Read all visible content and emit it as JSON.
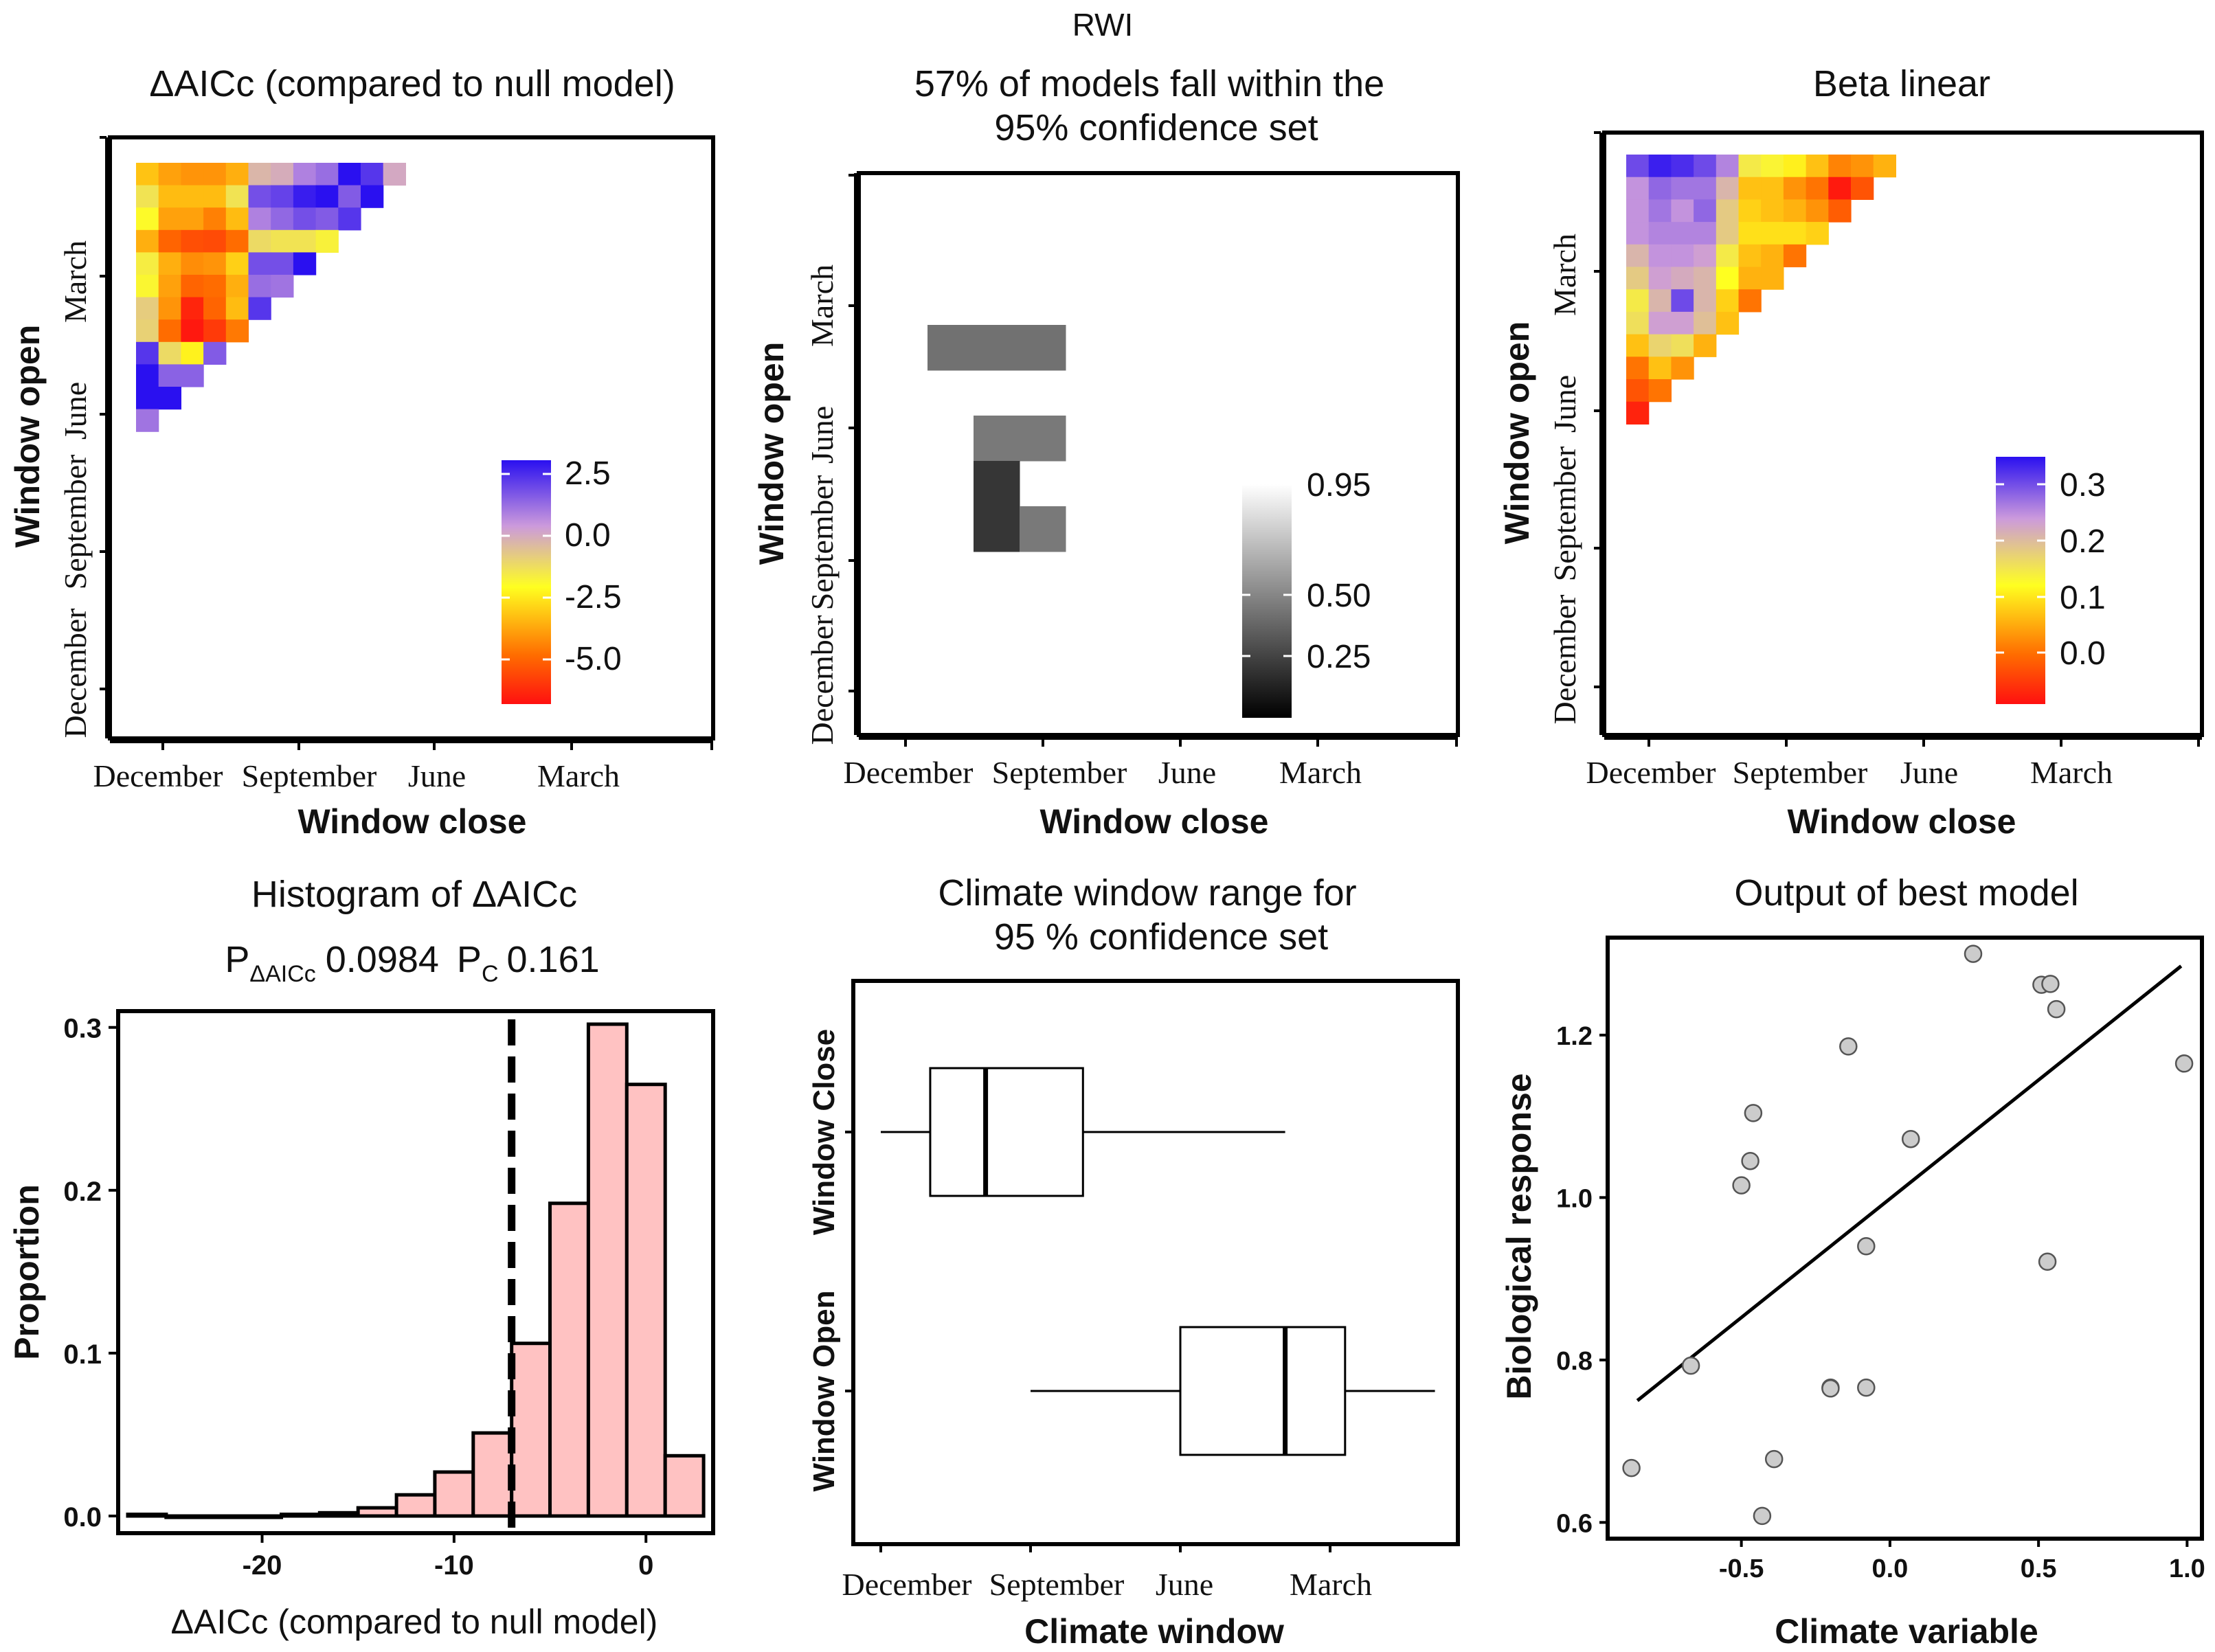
{
  "figure_title": "RWI",
  "chart_data": [
    {
      "id": "daicc",
      "type": "heatmap",
      "title": "ΔAICc (compared to null model)",
      "xlabel": "Window close",
      "ylabel": "Window open",
      "x_ticks": [
        "December",
        "September",
        "June",
        "March"
      ],
      "y_ticks": [
        "December",
        "September",
        "June",
        "March"
      ],
      "colorbar": {
        "labels": [
          "2.5",
          "0.0",
          "-2.5",
          "-5.0"
        ],
        "values": [
          2.5,
          0.0,
          -2.5,
          -5.0
        ],
        "colors": [
          "#2a10f0",
          "#cc9adc",
          "#ffff20",
          "#ff6c00",
          "#ff1010"
        ]
      },
      "rows": [
        [
          -2.5,
          -3.0,
          -3.2,
          -3.2,
          -2.8,
          0.0,
          0.2,
          1.0,
          1.3,
          2.8,
          2.2,
          0.3
        ],
        [
          -1.0,
          -2.6,
          -2.6,
          -2.6,
          -1.0,
          1.8,
          2.0,
          2.6,
          2.8,
          1.6,
          2.8
        ],
        [
          -1.5,
          -3.0,
          -3.0,
          -3.5,
          -2.6,
          1.0,
          1.4,
          1.8,
          1.6,
          2.2
        ],
        [
          -2.8,
          -4.0,
          -4.5,
          -4.6,
          -3.8,
          -0.8,
          -1.0,
          -1.0,
          -1.3
        ],
        [
          -1.2,
          -2.8,
          -3.3,
          -3.2,
          -2.3,
          1.8,
          1.8,
          3.0
        ],
        [
          -1.4,
          -3.0,
          -4.0,
          -3.8,
          -2.8,
          1.3,
          1.2
        ],
        [
          -0.5,
          -3.2,
          -5.5,
          -4.0,
          -2.6,
          2.2
        ],
        [
          -0.6,
          -3.8,
          -5.8,
          -5.0,
          -3.6
        ],
        [
          2.2,
          -0.8,
          -1.8,
          1.6
        ],
        [
          3.0,
          1.5,
          1.5
        ],
        [
          3.0,
          3.0
        ],
        [
          1.2
        ]
      ]
    },
    {
      "id": "conf",
      "type": "heatmap",
      "title_lines": [
        "57% of models fall within the",
        "95% confidence set"
      ],
      "xlabel": "Window close",
      "ylabel": "Window open",
      "x_ticks": [
        "December",
        "September",
        "June",
        "March"
      ],
      "y_ticks": [
        "December",
        "September",
        "June",
        "March"
      ],
      "colorbar": {
        "labels": [
          "0.95",
          "0.50",
          "0.25"
        ],
        "values": [
          0.95,
          0.5,
          0.25
        ]
      },
      "cells": [
        {
          "row": 3,
          "col": 1,
          "value": 0.42
        },
        {
          "row": 3,
          "col": 2,
          "value": 0.42
        },
        {
          "row": 3,
          "col": 3,
          "value": 0.42
        },
        {
          "row": 5,
          "col": 2,
          "value": 0.45
        },
        {
          "row": 5,
          "col": 3,
          "value": 0.45
        },
        {
          "row": 6,
          "col": 2,
          "value": 0.2
        },
        {
          "row": 7,
          "col": 2,
          "value": 0.2
        },
        {
          "row": 7,
          "col": 3,
          "value": 0.45
        }
      ]
    },
    {
      "id": "beta",
      "type": "heatmap",
      "title": "Beta linear",
      "xlabel": "Window close",
      "ylabel": "Window open",
      "x_ticks": [
        "December",
        "September",
        "June",
        "March"
      ],
      "y_ticks": [
        "December",
        "September",
        "June",
        "March"
      ],
      "colorbar": {
        "labels": [
          "0.3",
          "0.2",
          "0.1",
          "0.0"
        ],
        "values": [
          0.3,
          0.2,
          0.1,
          0.0
        ],
        "colors": [
          "#ff1010",
          "#ff6c00",
          "#ffff20",
          "#cc9adc",
          "#2a10f0"
        ]
      },
      "rows": [
        [
          0.3,
          0.33,
          0.32,
          0.3,
          0.26,
          0.17,
          0.16,
          0.14,
          0.11,
          0.07,
          0.08,
          0.1
        ],
        [
          0.25,
          0.28,
          0.27,
          0.27,
          0.22,
          0.11,
          0.11,
          0.08,
          0.06,
          -0.03,
          0.03
        ],
        [
          0.25,
          0.27,
          0.25,
          0.28,
          0.2,
          0.12,
          0.11,
          0.1,
          0.08,
          0.04
        ],
        [
          0.25,
          0.26,
          0.26,
          0.26,
          0.2,
          0.13,
          0.13,
          0.13,
          0.12
        ],
        [
          0.22,
          0.25,
          0.25,
          0.24,
          0.17,
          0.11,
          0.1,
          0.06
        ],
        [
          0.2,
          0.24,
          0.23,
          0.22,
          0.15,
          0.1,
          0.1
        ],
        [
          0.17,
          0.22,
          0.3,
          0.22,
          0.12,
          0.06
        ],
        [
          0.18,
          0.24,
          0.24,
          0.21,
          0.11
        ],
        [
          0.11,
          0.19,
          0.18,
          0.1
        ],
        [
          0.06,
          0.11,
          0.08
        ],
        [
          0.03,
          0.06
        ],
        [
          -0.02
        ]
      ]
    },
    {
      "id": "hist",
      "type": "bar",
      "title": "Histogram of ΔAICc",
      "stats": {
        "p_daicc_main": "P",
        "p_daicc_sub": "ΔAICc",
        "p_daicc_value": "0.0984",
        "pc_main": "P",
        "pc_sub": "C",
        "pc_value": "0.161"
      },
      "xlabel": "ΔAICc (compared to null model)",
      "ylabel": "Proportion",
      "xlim": [
        -27.5,
        3.5
      ],
      "ylim": [
        0,
        0.31
      ],
      "x_ticks": [
        -20,
        -10,
        0
      ],
      "x_tick_labels": [
        "-20",
        "-10",
        "0"
      ],
      "y_ticks": [
        0.0,
        0.1,
        0.2,
        0.3
      ],
      "y_tick_labels": [
        "0.0",
        "0.1",
        "0.2",
        "0.3"
      ],
      "bin_width": 2,
      "bin_starts": [
        -27,
        -25,
        -23,
        -21,
        -19,
        -17,
        -15,
        -13,
        -11,
        -9,
        -7,
        -5,
        -3,
        -1,
        1
      ],
      "values": [
        0.001,
        0.0,
        0.0,
        0.0,
        0.001,
        0.002,
        0.005,
        0.013,
        0.027,
        0.051,
        0.106,
        0.192,
        0.302,
        0.265,
        0.037
      ],
      "threshold_line": -7
    },
    {
      "id": "range",
      "type": "boxplot",
      "title_lines": [
        "Climate window range for",
        "95 % confidence set"
      ],
      "xlabel": "Climate window",
      "x_ticks": [
        "December",
        "September",
        "June",
        "March"
      ],
      "boxes": [
        {
          "label": "Window Close",
          "min": 0,
          "q1": 3.3,
          "median": 7.0,
          "q3": 13.5,
          "max": 27
        },
        {
          "label": "Window Open",
          "min": 10,
          "q1": 20.0,
          "median": 27.0,
          "q3": 31.0,
          "max": 37
        }
      ],
      "xlim": [
        -2,
        38
      ]
    },
    {
      "id": "best",
      "type": "scatter",
      "title": "Output of best model",
      "xlabel": "Climate variable",
      "ylabel": "Biological response",
      "xlim": [
        -0.95,
        1.05
      ],
      "ylim": [
        0.58,
        1.32
      ],
      "x_ticks": [
        -0.5,
        0.0,
        0.5,
        1.0
      ],
      "x_tick_labels": [
        "-0.5",
        "0.0",
        "0.5",
        "1.0"
      ],
      "y_ticks": [
        0.6,
        0.8,
        1.0,
        1.2
      ],
      "y_tick_labels": [
        "0.6",
        "0.8",
        "1.0",
        "1.2"
      ],
      "x": [
        -0.87,
        -0.67,
        -0.5,
        -0.47,
        -0.46,
        -0.43,
        -0.39,
        -0.2,
        -0.2,
        -0.14,
        -0.08,
        -0.08,
        0.07,
        0.28,
        0.51,
        0.53,
        0.54,
        0.56,
        0.99
      ],
      "y": [
        0.667,
        0.793,
        1.015,
        1.045,
        1.104,
        0.608,
        0.678,
        0.766,
        0.765,
        1.186,
        0.94,
        0.766,
        1.072,
        1.3,
        1.262,
        0.921,
        1.263,
        1.232,
        1.165
      ],
      "fit_line": {
        "x": [
          -0.85,
          0.98
        ],
        "y": [
          0.75,
          1.285
        ]
      }
    }
  ]
}
